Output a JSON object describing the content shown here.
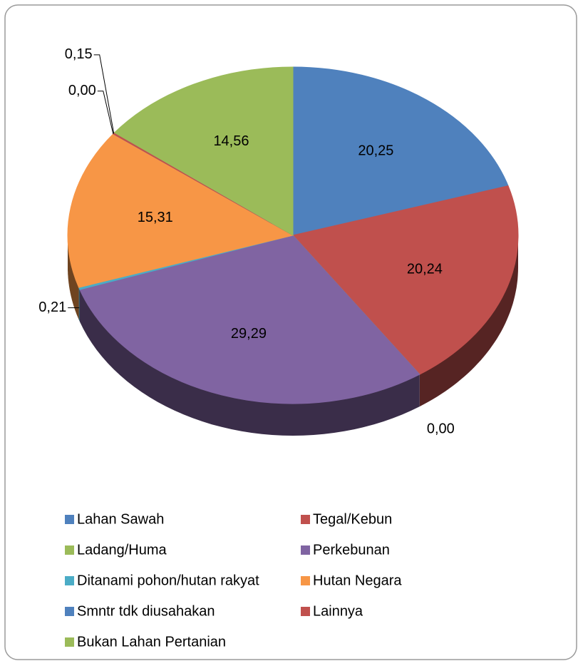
{
  "chart_data": {
    "type": "pie3d",
    "categories": [
      "Lahan Sawah",
      "Tegal/Kebun",
      "Ladang/Huma",
      "Perkebunan",
      "Ditanami pohon/hutan rakyat",
      "Hutan Negara",
      "Smntr tdk diusahakan",
      "Lainnya",
      "Bukan Lahan Pertanian"
    ],
    "values": [
      20.25,
      20.24,
      0.0,
      29.29,
      0.21,
      15.31,
      0.0,
      0.15,
      14.56
    ],
    "value_labels": [
      "20,25",
      "20,24",
      "0,00",
      "29,29",
      "0,21",
      "15,31",
      "0,00",
      "0,15",
      "14,56"
    ],
    "colors": [
      "#4f81bd",
      "#c0504d",
      "#9bbb59",
      "#8064a2",
      "#4bacc6",
      "#f79646",
      "#4f81bd",
      "#c0504d",
      "#9bbb59"
    ],
    "legend": "bottom"
  }
}
